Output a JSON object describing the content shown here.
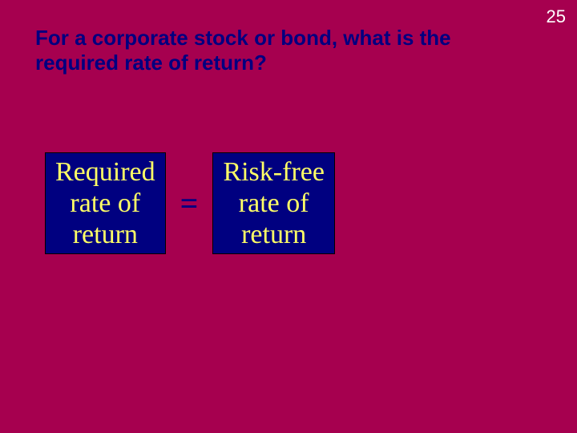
{
  "slide": {
    "background_color": "#a6004f",
    "page_number": "25",
    "page_number_color": "#ffffff",
    "title": "For a corporate stock or bond, what is the required rate of return?",
    "title_color": "#000080"
  },
  "equation": {
    "operator_color": "#000080",
    "box_background": "#000080",
    "box_border_color": "#000000",
    "box_text_color": "#ffff66",
    "left": {
      "line1": "Required",
      "line2": "rate of",
      "line3": "return"
    },
    "op1": "=",
    "right": {
      "line1": "Risk-free",
      "line2": "rate of",
      "line3": "return"
    }
  }
}
